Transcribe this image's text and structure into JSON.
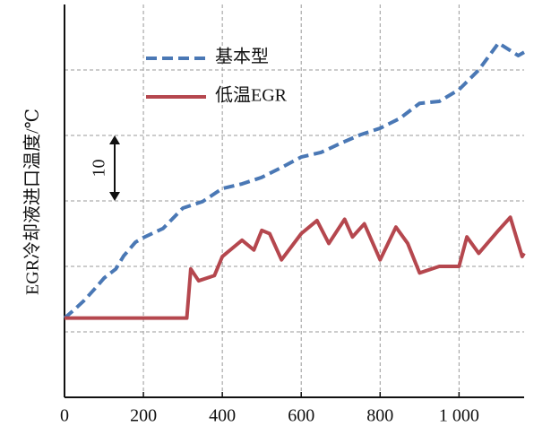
{
  "chart_data": {
    "type": "line",
    "ylabel": "EGR冷却液进口温度/℃",
    "xlim": [
      0,
      1165
    ],
    "xticks": [
      0,
      200,
      400,
      600,
      800,
      {
        "value": 1000,
        "label": "1 000"
      }
    ],
    "ylim": [
      0,
      60
    ],
    "ygrid": [
      10,
      20,
      30,
      40,
      50
    ],
    "grid": true,
    "annotation": {
      "text": "10"
    },
    "legend": "upper left",
    "series": [
      {
        "name": "基本型",
        "color": "#4a78b5",
        "dashed": true,
        "x": [
          0,
          25,
          50,
          80,
          100,
          130,
          150,
          180,
          200,
          250,
          300,
          350,
          400,
          450,
          500,
          550,
          600,
          650,
          700,
          750,
          800,
          850,
          900,
          950,
          1000,
          1050,
          1100,
          1150,
          1165
        ],
        "values": [
          12.1,
          13.4,
          14.8,
          16.8,
          18.2,
          19.6,
          21.6,
          23.7,
          24.4,
          25.8,
          28.9,
          29.9,
          31.9,
          32.6,
          33.6,
          35.1,
          36.7,
          37.4,
          38.8,
          40.1,
          41.1,
          42.6,
          44.9,
          45.2,
          47.0,
          50.0,
          54.1,
          52.2,
          52.7
        ]
      },
      {
        "name": "低温EGR",
        "color": "#b5474e",
        "dashed": false,
        "x": [
          0,
          310,
          320,
          340,
          380,
          400,
          450,
          480,
          500,
          520,
          550,
          600,
          640,
          670,
          710,
          730,
          760,
          800,
          840,
          870,
          890,
          900,
          950,
          1000,
          1020,
          1050,
          1100,
          1130,
          1140,
          1160,
          1165
        ],
        "values": [
          12.1,
          12.1,
          19.6,
          17.8,
          18.6,
          21.5,
          24.0,
          22.5,
          25.5,
          25.0,
          21.0,
          25.0,
          27.0,
          23.5,
          27.2,
          24.5,
          26.5,
          21.0,
          26.0,
          23.5,
          20.5,
          19.0,
          20.0,
          20.0,
          24.5,
          22.0,
          25.5,
          27.5,
          25.5,
          21.5,
          22.0
        ]
      }
    ]
  }
}
